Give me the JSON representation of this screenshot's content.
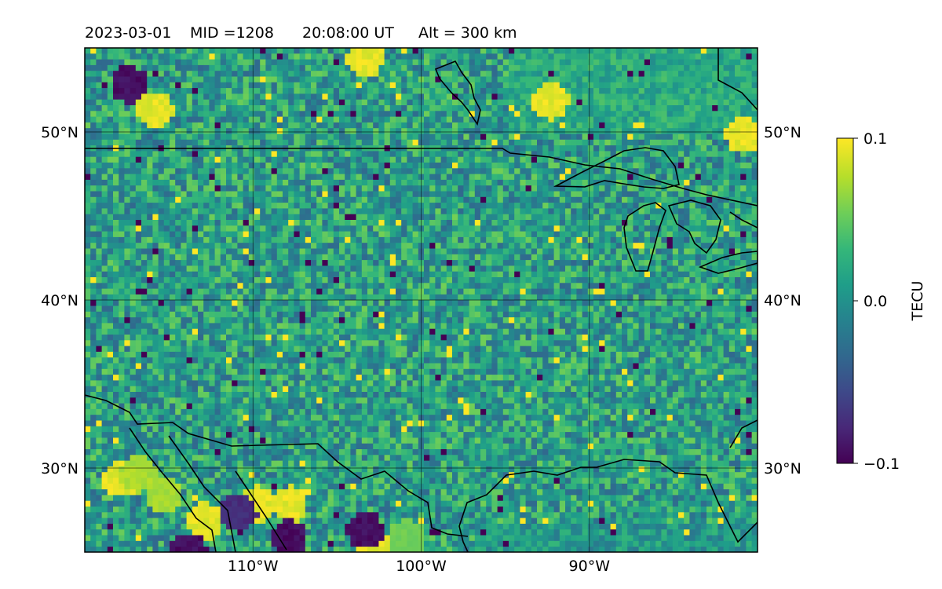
{
  "header": {
    "date": "2023-03-01",
    "mid": "MID =1208",
    "time": "20:08:00  UT",
    "alt": "Alt = 300 km"
  },
  "map": {
    "lon_range": [
      -120,
      -80
    ],
    "lat_range": [
      25,
      55
    ],
    "lon_ticks": [
      {
        "value": -110,
        "label": "110°W"
      },
      {
        "value": -100,
        "label": "100°W"
      },
      {
        "value": -90,
        "label": "90°W"
      }
    ],
    "lat_ticks": [
      {
        "value": 50,
        "label": "50°N"
      },
      {
        "value": 40,
        "label": "40°N"
      },
      {
        "value": 30,
        "label": "30°N"
      }
    ],
    "field": "TEC anomaly grid, values roughly between -0.1 and 0.1 TECU; mostly near 0 with scattered positive patches (yellow) and negative patches (purple)",
    "hotspots": [
      {
        "lon": -117.5,
        "lat": 53,
        "value": -0.1
      },
      {
        "lon": -103.5,
        "lat": 54.5,
        "value": 0.1
      },
      {
        "lon": -92.5,
        "lat": 52,
        "value": 0.1
      },
      {
        "lon": -81,
        "lat": 50,
        "value": 0.1
      },
      {
        "lon": -116,
        "lat": 51.5,
        "value": 0.1
      },
      {
        "lon": -110,
        "lat": 28,
        "value": 0.1
      },
      {
        "lon": -108,
        "lat": 28,
        "value": 0.1
      },
      {
        "lon": -113,
        "lat": 27,
        "value": 0.1
      },
      {
        "lon": -115.5,
        "lat": 28.5,
        "value": 0.08
      },
      {
        "lon": -103,
        "lat": 25.5,
        "value": 0.1
      },
      {
        "lon": -103.5,
        "lat": 26.5,
        "value": -0.1
      },
      {
        "lon": -114,
        "lat": 25.2,
        "value": -0.1
      },
      {
        "lon": -118,
        "lat": 29.5,
        "value": 0.1
      },
      {
        "lon": -117,
        "lat": 29.8,
        "value": 0.08
      },
      {
        "lon": -101,
        "lat": 26,
        "value": 0.06
      },
      {
        "lon": -111,
        "lat": 27.5,
        "value": -0.08
      },
      {
        "lon": -108,
        "lat": 26,
        "value": -0.1
      }
    ]
  },
  "colorbar": {
    "label": "TECU",
    "ticks": [
      {
        "value": 0.1,
        "label": "0.1"
      },
      {
        "value": 0.0,
        "label": "0.0"
      },
      {
        "value": -0.1,
        "label": "−0.1"
      }
    ],
    "colors": [
      "#fde725",
      "#b5de2b",
      "#6ece58",
      "#35b779",
      "#1f9e89",
      "#26828e",
      "#31688e",
      "#3e4989",
      "#482878",
      "#440154"
    ]
  }
}
